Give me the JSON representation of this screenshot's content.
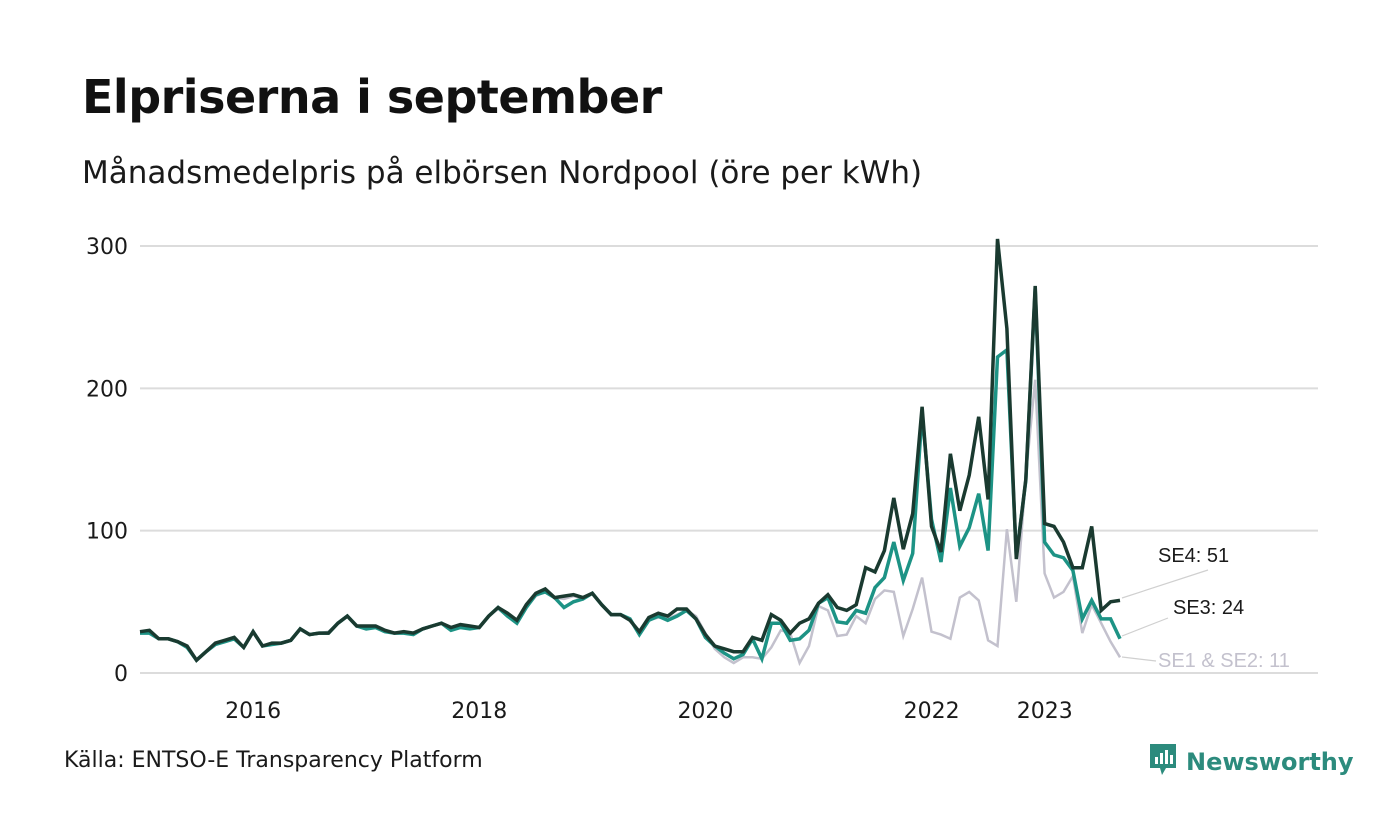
{
  "title": "Elpriserna i september",
  "subtitle": "Månadsmedelpris på elbörsen Nordpool (öre per kWh)",
  "source": "Källa: ENTSO-E Transparency Platform",
  "brand": {
    "name": "Newsworthy",
    "icon": "newsworthy-logo-icon",
    "color": "#2c8b7d"
  },
  "chart_data": {
    "type": "line",
    "x_start": "2015-01",
    "x_unit": "month",
    "ylim": [
      0,
      310
    ],
    "yticks": [
      0,
      100,
      200,
      300
    ],
    "xticks": [
      {
        "label": "2016",
        "x": "2016-01"
      },
      {
        "label": "2018",
        "x": "2018-01"
      },
      {
        "label": "2020",
        "x": "2020-01"
      },
      {
        "label": "2022",
        "x": "2022-01"
      },
      {
        "label": "2023",
        "x": "2023-01"
      }
    ],
    "grid": true,
    "series": [
      {
        "name": "SE1 & SE2",
        "label": "SE1 & SE2: 11",
        "color": "#c3c1cd",
        "values": [
          29,
          29,
          24,
          24,
          22,
          18,
          9,
          15,
          20,
          22,
          24,
          18,
          29,
          19,
          20,
          21,
          23,
          31,
          27,
          28,
          29,
          35,
          40,
          33,
          32,
          32,
          29,
          28,
          29,
          27,
          31,
          33,
          35,
          30,
          32,
          31,
          32,
          40,
          45,
          40,
          35,
          46,
          54,
          57,
          53,
          52,
          54,
          52,
          56,
          48,
          41,
          41,
          38,
          28,
          37,
          39,
          38,
          41,
          44,
          40,
          28,
          17,
          11,
          7,
          11,
          11,
          10,
          18,
          30,
          28,
          7,
          19,
          47,
          44,
          26,
          27,
          40,
          35,
          52,
          58,
          57,
          26,
          45,
          67,
          29,
          27,
          24,
          53,
          57,
          51,
          23,
          19,
          101,
          50,
          138,
          206,
          70,
          53,
          57,
          68,
          28,
          48,
          35,
          22,
          11
        ]
      },
      {
        "name": "SE3",
        "label": "SE3: 24",
        "color": "#1d9385",
        "values": [
          28,
          28,
          24,
          24,
          22,
          18,
          9,
          15,
          20,
          22,
          24,
          18,
          29,
          19,
          20,
          21,
          23,
          31,
          27,
          28,
          28,
          35,
          40,
          33,
          31,
          32,
          29,
          28,
          28,
          27,
          31,
          33,
          35,
          30,
          32,
          31,
          32,
          40,
          46,
          40,
          35,
          46,
          55,
          57,
          53,
          46,
          50,
          52,
          56,
          48,
          41,
          41,
          38,
          27,
          37,
          40,
          37,
          40,
          44,
          38,
          25,
          19,
          14,
          10,
          13,
          24,
          10,
          35,
          35,
          23,
          24,
          30,
          49,
          53,
          36,
          35,
          44,
          42,
          60,
          67,
          92,
          65,
          84,
          183,
          108,
          78,
          130,
          89,
          102,
          126,
          86,
          222,
          227,
          82,
          135,
          270,
          92,
          83,
          81,
          72,
          38,
          51,
          38,
          38,
          24
        ]
      },
      {
        "name": "SE4",
        "label": "SE4: 51",
        "color": "#1a3a30",
        "values": [
          29,
          30,
          24,
          24,
          22,
          19,
          9,
          15,
          21,
          23,
          25,
          18,
          29,
          19,
          21,
          21,
          23,
          31,
          27,
          28,
          28,
          35,
          40,
          33,
          33,
          33,
          30,
          28,
          29,
          28,
          31,
          33,
          35,
          32,
          34,
          33,
          32,
          40,
          46,
          42,
          37,
          48,
          56,
          59,
          53,
          54,
          55,
          53,
          56,
          48,
          41,
          41,
          37,
          29,
          39,
          42,
          40,
          45,
          45,
          38,
          27,
          19,
          17,
          15,
          15,
          25,
          23,
          41,
          37,
          28,
          35,
          38,
          49,
          55,
          46,
          44,
          48,
          74,
          71,
          86,
          123,
          87,
          112,
          187,
          103,
          85,
          154,
          114,
          139,
          180,
          122,
          305,
          242,
          80,
          136,
          272,
          105,
          103,
          92,
          74,
          74,
          103,
          44,
          50,
          51
        ]
      }
    ]
  }
}
